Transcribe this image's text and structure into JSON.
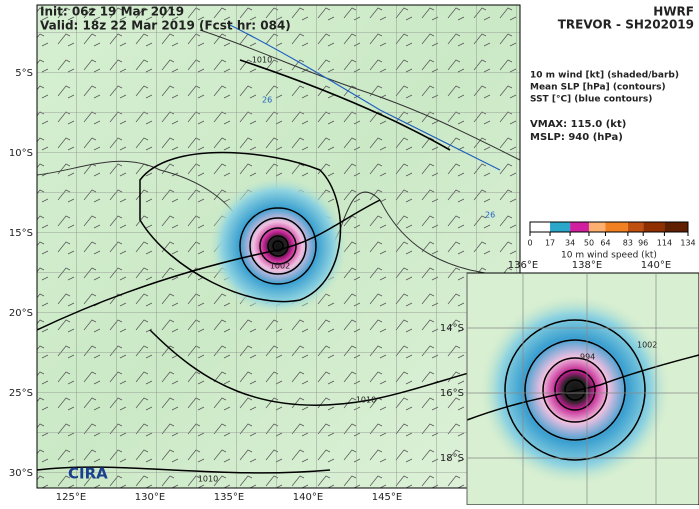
{
  "header": {
    "init": "Init:   06z 19 Mar 2019",
    "valid": "Valid: 18z 22 Mar 2019 (Fcst hr: 084)",
    "model": "HWRF",
    "storm": "TREVOR - SH202019"
  },
  "legend": {
    "lines": [
      "10 m wind [kt] (shaded/barb)",
      "Mean SLP [hPa] (contours)",
      "SST [°C] (blue contours)"
    ],
    "vmax": "VMAX: 115.0 (kt)",
    "mslp": "MSLP:  940 (hPa)"
  },
  "colorbar": {
    "label": "10 m wind speed (kt)",
    "range": [
      0,
      134
    ],
    "ticks": [
      0,
      17,
      34,
      50,
      64,
      83,
      96,
      114,
      134
    ],
    "colors": [
      "#ffffff",
      "#2aa7c9",
      "#d020a0",
      "#ffb070",
      "#f08020",
      "#c05010",
      "#903000",
      "#602000"
    ]
  },
  "map": {
    "lat_labels": [
      "5°S",
      "10°S",
      "15°S",
      "20°S",
      "25°S",
      "30°S"
    ],
    "lon_labels": [
      "125°E",
      "130°E",
      "135°E",
      "140°E",
      "145°E"
    ],
    "contour_labels": [
      "1010",
      "1002",
      "1010",
      "1010"
    ],
    "sst_labels": [
      "26",
      "26"
    ]
  },
  "inset": {
    "lon_labels": [
      "136°E",
      "138°E",
      "140°E"
    ],
    "lat_labels": [
      "14°S",
      "16°S",
      "18°S"
    ],
    "contour_labels": [
      "994",
      "1002"
    ]
  },
  "logo": "CIRA"
}
